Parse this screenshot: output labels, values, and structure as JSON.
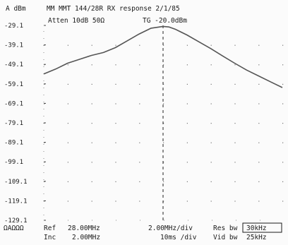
{
  "header": {
    "ref_unit": "A dBm",
    "title": "MM MMT 144/28R RX response 2/1/85",
    "atten": "Atten 10dB 50Ω",
    "tg_level": "TG -20.0dBm"
  },
  "footer": {
    "marker_icons": "ΩAΩΩΩ",
    "ref_label": "Ref",
    "ref_value": "28.00MHz",
    "inc_label": "Inc",
    "inc_value": "2.00MHz",
    "freq_per_div": "2.00MHz/div",
    "time_per_div": "10ms /div",
    "res_bw_label": "Res bw",
    "res_bw_value": "30kHz",
    "vid_bw_label": "Vid bw",
    "vid_bw_value": "25kHz"
  },
  "colors": {
    "trace": "#555555",
    "text": "#1a1a1a",
    "background": "#fbfbfb"
  },
  "chart_data": {
    "type": "line",
    "title": "MM MMT 144/28R RX response 2/1/85",
    "xlabel": "",
    "ylabel": "A dBm",
    "x_unit": "MHz",
    "xlim": [
      18,
      38
    ],
    "ylim": [
      -129.1,
      -29.1
    ],
    "yticks": [
      "-29.1",
      "-39.1",
      "-49.1",
      "-59.1",
      "-69.1",
      "-79.1",
      "-89.1",
      "-99.1",
      "-109.1",
      "-119.1",
      "-129.1"
    ],
    "center_marker_mhz": 28.0,
    "grid": false,
    "series": [
      {
        "x": [
          18.0,
          19.0,
          20.0,
          21.0,
          22.0,
          23.0,
          24.0,
          25.0,
          26.0,
          27.0,
          28.0,
          28.5,
          29.0,
          30.0,
          31.0,
          32.0,
          33.0,
          34.0,
          35.0,
          36.0,
          37.0,
          38.0
        ],
        "values": [
          -54.0,
          -51.5,
          -48.5,
          -46.5,
          -44.5,
          -43.0,
          -40.5,
          -37.0,
          -33.5,
          -30.5,
          -29.6,
          -29.9,
          -31.0,
          -34.0,
          -37.5,
          -41.0,
          -44.8,
          -48.5,
          -52.0,
          -55.0,
          -58.0,
          -61.0
        ]
      }
    ]
  }
}
